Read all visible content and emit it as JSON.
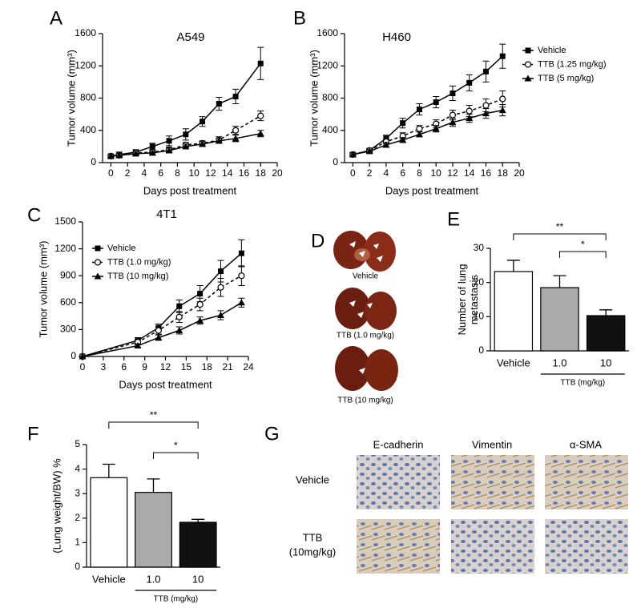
{
  "panel_labels": [
    "A",
    "B",
    "C",
    "D",
    "E",
    "F",
    "G"
  ],
  "chart_data": [
    {
      "type": "line",
      "title": "A549",
      "xlabel": "Days post treatment",
      "ylabel": "Tumor volume (mm³)",
      "x": [
        0,
        1,
        3,
        5,
        7,
        9,
        11,
        13,
        15,
        18
      ],
      "xlim": [
        -1,
        20
      ],
      "xticks": [
        0,
        2,
        4,
        6,
        8,
        10,
        12,
        14,
        16,
        18,
        20
      ],
      "ylim": [
        0,
        1600
      ],
      "yticks": [
        0,
        400,
        800,
        1200,
        1600
      ],
      "series": [
        {
          "color": "#000000",
          "marker": "square",
          "dashed": false,
          "values": [
            80,
            100,
            130,
            200,
            270,
            350,
            510,
            730,
            820,
            1230
          ],
          "errors": [
            20,
            30,
            30,
            40,
            60,
            70,
            60,
            80,
            90,
            200
          ]
        },
        {
          "color": "#000000",
          "marker": "circle",
          "dashed": true,
          "values": [
            80,
            90,
            120,
            130,
            160,
            220,
            240,
            280,
            400,
            580
          ],
          "errors": [
            20,
            20,
            20,
            30,
            30,
            30,
            30,
            40,
            50,
            60
          ]
        },
        {
          "color": "#000000",
          "marker": "triangle",
          "dashed": false,
          "values": [
            80,
            90,
            110,
            120,
            150,
            200,
            230,
            270,
            300,
            360
          ],
          "errors": [
            20,
            20,
            20,
            20,
            30,
            30,
            30,
            30,
            40,
            40
          ]
        }
      ]
    },
    {
      "type": "line",
      "title": "H460",
      "xlabel": "Days post treatment",
      "ylabel": "Tumor volume (mm³)",
      "x": [
        0,
        2,
        4,
        6,
        8,
        10,
        12,
        14,
        16,
        18
      ],
      "xlim": [
        -1,
        20
      ],
      "xticks": [
        0,
        2,
        4,
        6,
        8,
        10,
        12,
        14,
        16,
        18,
        20
      ],
      "ylim": [
        0,
        1600
      ],
      "yticks": [
        0,
        400,
        800,
        1200,
        1600
      ],
      "legend": "outside right",
      "series": [
        {
          "name": "Vehicle",
          "color": "#000000",
          "marker": "square",
          "dashed": false,
          "values": [
            100,
            150,
            300,
            490,
            660,
            750,
            860,
            990,
            1130,
            1320
          ],
          "errors": [
            20,
            20,
            40,
            60,
            70,
            70,
            90,
            100,
            130,
            150
          ]
        },
        {
          "name": "TTB (1.25 mg/kg)",
          "color": "#000000",
          "marker": "circle",
          "dashed": true,
          "values": [
            100,
            150,
            260,
            330,
            420,
            480,
            590,
            640,
            710,
            790
          ],
          "errors": [
            20,
            20,
            30,
            40,
            40,
            50,
            60,
            70,
            80,
            100
          ]
        },
        {
          "name": "TTB (5 mg/kg)",
          "color": "#000000",
          "marker": "triangle",
          "dashed": false,
          "values": [
            100,
            140,
            220,
            280,
            350,
            420,
            500,
            550,
            610,
            650
          ],
          "errors": [
            20,
            20,
            30,
            30,
            30,
            40,
            50,
            50,
            60,
            70
          ]
        }
      ]
    },
    {
      "type": "line",
      "title": "4T1",
      "xlabel": "Days post treatment",
      "ylabel": "Tumor volume (mm³)",
      "x": [
        0,
        8,
        11,
        14,
        17,
        20,
        23
      ],
      "xlim": [
        0,
        24
      ],
      "xticks": [
        0,
        3,
        6,
        9,
        12,
        15,
        18,
        21,
        24
      ],
      "ylim": [
        0,
        1500
      ],
      "yticks": [
        0,
        300,
        600,
        900,
        1200,
        1500
      ],
      "legend": "upper left",
      "series": [
        {
          "name": "Vehicle",
          "color": "#000000",
          "marker": "square",
          "dashed": false,
          "values": [
            0,
            180,
            320,
            560,
            700,
            950,
            1150
          ],
          "errors": [
            0,
            30,
            40,
            70,
            90,
            120,
            150
          ]
        },
        {
          "name": "TTB (1.0 mg/kg)",
          "color": "#000000",
          "marker": "circle",
          "dashed": true,
          "values": [
            0,
            160,
            290,
            440,
            580,
            770,
            900
          ],
          "errors": [
            0,
            30,
            40,
            60,
            70,
            100,
            110
          ]
        },
        {
          "name": "TTB (10 mg/kg)",
          "color": "#000000",
          "marker": "triangle",
          "dashed": false,
          "values": [
            0,
            120,
            210,
            290,
            400,
            460,
            600
          ],
          "errors": [
            0,
            20,
            30,
            40,
            40,
            50,
            50
          ]
        }
      ]
    },
    {
      "type": "bar",
      "ylabel": [
        "Number of lung",
        "metastasis"
      ],
      "group_label": "TTB (mg/kg)",
      "categories": [
        "Vehicle",
        "1.0",
        "10"
      ],
      "values": [
        23.2,
        18.5,
        10.3
      ],
      "errors": [
        3.3,
        3.5,
        1.7
      ],
      "colors": [
        "#ffffff",
        "#aaaaaa",
        "#111111"
      ],
      "ylim": [
        0,
        30
      ],
      "yticks": [
        0,
        10,
        20,
        30
      ],
      "annotations": [
        "**",
        "*"
      ]
    },
    {
      "type": "bar",
      "ylabel": [
        "(Lung weight/BW) %"
      ],
      "group_label": "TTB (mg/kg)",
      "categories": [
        "Vehicle",
        "1.0",
        "10"
      ],
      "values": [
        3.65,
        3.05,
        1.83
      ],
      "errors": [
        0.55,
        0.55,
        0.12
      ],
      "colors": [
        "#ffffff",
        "#aaaaaa",
        "#111111"
      ],
      "ylim": [
        0,
        5
      ],
      "yticks": [
        0,
        1,
        2,
        3,
        4,
        5
      ],
      "annotations": [
        "**",
        "*"
      ]
    }
  ],
  "lung_images": {
    "labels": [
      "Vehicle",
      "TTB (1.0 mg/kg)",
      "TTB (10 mg/kg)"
    ]
  },
  "ihc": {
    "columns": [
      "E-cadherin",
      "Vimentin",
      "α-SMA"
    ],
    "rows": [
      [
        "Vehicle"
      ],
      [
        "TTB",
        "(10mg/kg)"
      ]
    ]
  }
}
